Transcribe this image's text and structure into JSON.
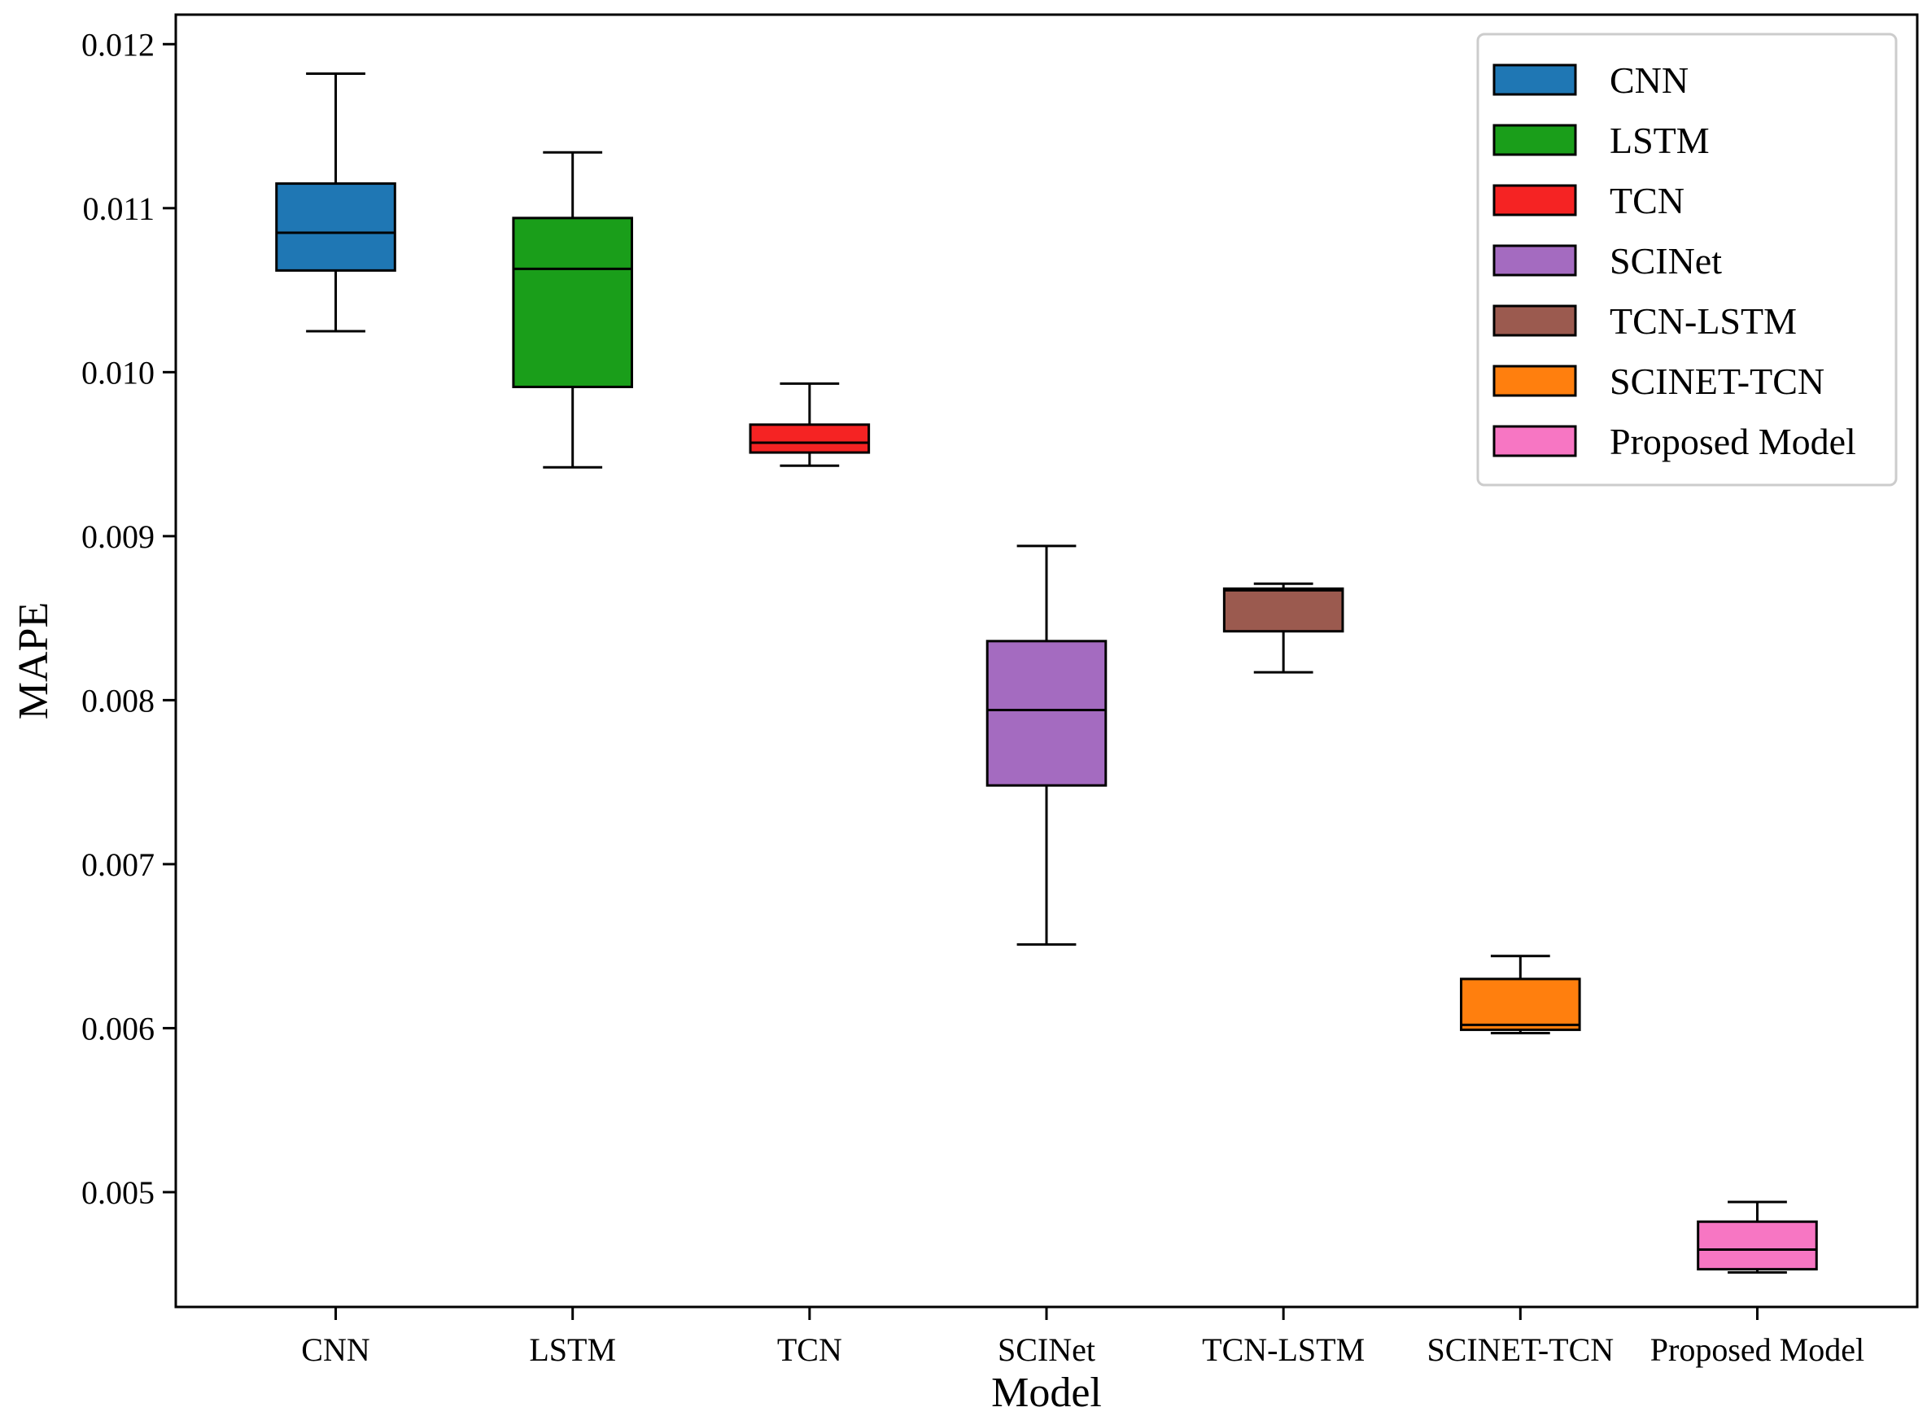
{
  "chart_data": {
    "type": "box",
    "title": "",
    "xlabel": "Model",
    "ylabel": "MAPE",
    "ylim": [
      0.0043,
      0.01218
    ],
    "yticks": [
      0.005,
      0.006,
      0.007,
      0.008,
      0.009,
      0.01,
      0.011,
      0.012
    ],
    "ytick_labels": [
      "0.005",
      "0.006",
      "0.007",
      "0.008",
      "0.009",
      "0.010",
      "0.011",
      "0.012"
    ],
    "grid": false,
    "legend_position": "top-right",
    "categories": [
      "CNN",
      "LSTM",
      "TCN",
      "SCINet",
      "TCN-LSTM",
      "SCINET-TCN",
      "Proposed Model"
    ],
    "series": [
      {
        "name": "CNN",
        "color": "#1f77b4",
        "whisker_low": 0.01025,
        "q1": 0.01062,
        "median": 0.01085,
        "q3": 0.01115,
        "whisker_high": 0.01182
      },
      {
        "name": "LSTM",
        "color": "#1a9e1a",
        "whisker_low": 0.00942,
        "q1": 0.00991,
        "median": 0.01063,
        "q3": 0.01094,
        "whisker_high": 0.01134
      },
      {
        "name": "TCN",
        "color": "#f52323",
        "whisker_low": 0.00943,
        "q1": 0.00951,
        "median": 0.00957,
        "q3": 0.00968,
        "whisker_high": 0.00993
      },
      {
        "name": "SCINet",
        "color": "#a46bc0",
        "whisker_low": 0.00651,
        "q1": 0.00748,
        "median": 0.00794,
        "q3": 0.00836,
        "whisker_high": 0.00894
      },
      {
        "name": "TCN-LSTM",
        "color": "#9b5a4f",
        "whisker_low": 0.00817,
        "q1": 0.00842,
        "median": 0.00867,
        "q3": 0.00868,
        "whisker_high": 0.00871
      },
      {
        "name": "SCINET-TCN",
        "color": "#ff7f0e",
        "whisker_low": 0.00597,
        "q1": 0.00599,
        "median": 0.00602,
        "q3": 0.0063,
        "whisker_high": 0.00644
      },
      {
        "name": "Proposed Model",
        "color": "#f776c3",
        "whisker_low": 0.00451,
        "q1": 0.00453,
        "median": 0.00465,
        "q3": 0.00482,
        "whisker_high": 0.00494
      }
    ]
  }
}
